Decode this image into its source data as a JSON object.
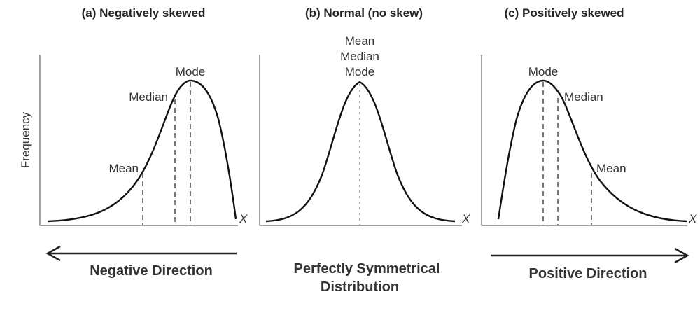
{
  "panels": [
    {
      "title": "(a) Negatively skewed",
      "labels": {
        "mode": "Mode",
        "median": "Median",
        "mean": "Mean"
      },
      "x_axis_label": "X",
      "y_axis_label": "Frequency"
    },
    {
      "title": "(b) Normal (no skew)",
      "labels": {
        "mean": "Mean",
        "median": "Median",
        "mode": "Mode"
      },
      "x_axis_label": "X"
    },
    {
      "title": "(c) Positively skewed",
      "labels": {
        "mode": "Mode",
        "median": "Median",
        "mean": "Mean"
      },
      "x_axis_label": "X"
    }
  ],
  "captions": {
    "negative": "Negative Direction",
    "symmetric_line1": "Perfectly Symmetrical",
    "symmetric_line2": "Distribution",
    "positive": "Positive Direction"
  }
}
